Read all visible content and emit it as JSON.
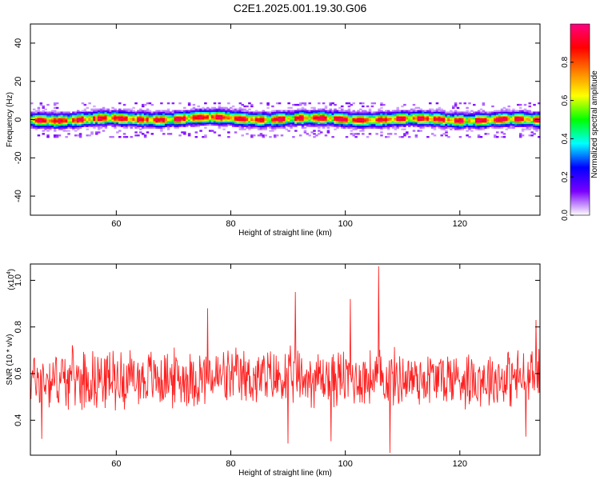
{
  "page": {
    "title": "C2E1.2025.001.19.30.G06"
  },
  "chart_data": [
    {
      "type": "heatmap",
      "title": "C2E1.2025.001.19.30.G06",
      "xlabel": "Height of straight line (km)",
      "ylabel": "Frequency (Hz)",
      "xlim": [
        45,
        134
      ],
      "ylim": [
        -50,
        50
      ],
      "x_ticks": [
        60,
        80,
        100,
        120
      ],
      "y_ticks": [
        40,
        20,
        0,
        -20,
        -40
      ],
      "band_center_hz": 0,
      "band_half_width_hz": 4,
      "colorbar": {
        "label": "Normalized spectral amplitude",
        "range": [
          0.0,
          1.0
        ],
        "ticks": [
          0.0,
          0.2,
          0.4,
          0.6,
          0.8
        ],
        "colormap": [
          "#ffffff",
          "#7a00ff",
          "#0000ff",
          "#00ffff",
          "#00ff00",
          "#ffff00",
          "#ff8000",
          "#ff0000",
          "#ff0080"
        ]
      },
      "grid": false
    },
    {
      "type": "line",
      "xlabel": "Height of straight line (km)",
      "ylabel": "SNR (10 * v/v)",
      "y_multiplier_label": "(x10",
      "y_multiplier_exp": "4",
      "y_multiplier_close": ")",
      "xlim": [
        45,
        134
      ],
      "ylim": [
        0.25,
        1.07
      ],
      "x_ticks": [
        60,
        80,
        100,
        120
      ],
      "y_ticks": [
        0.4,
        0.6,
        0.8,
        1.0
      ],
      "series": [
        {
          "color": "#ff2020",
          "mean": 0.58,
          "spread": 0.12,
          "peaks": [
            [
              105.8,
              1.06
            ],
            [
              91.3,
              0.95
            ],
            [
              100.9,
              0.92
            ],
            [
              76.0,
              0.88
            ],
            [
              133.3,
              0.83
            ]
          ],
          "troughs": [
            [
              107.8,
              0.26
            ],
            [
              90.0,
              0.3
            ],
            [
              97.5,
              0.31
            ],
            [
              47.0,
              0.32
            ],
            [
              131.5,
              0.33
            ]
          ]
        }
      ],
      "grid": false
    }
  ]
}
